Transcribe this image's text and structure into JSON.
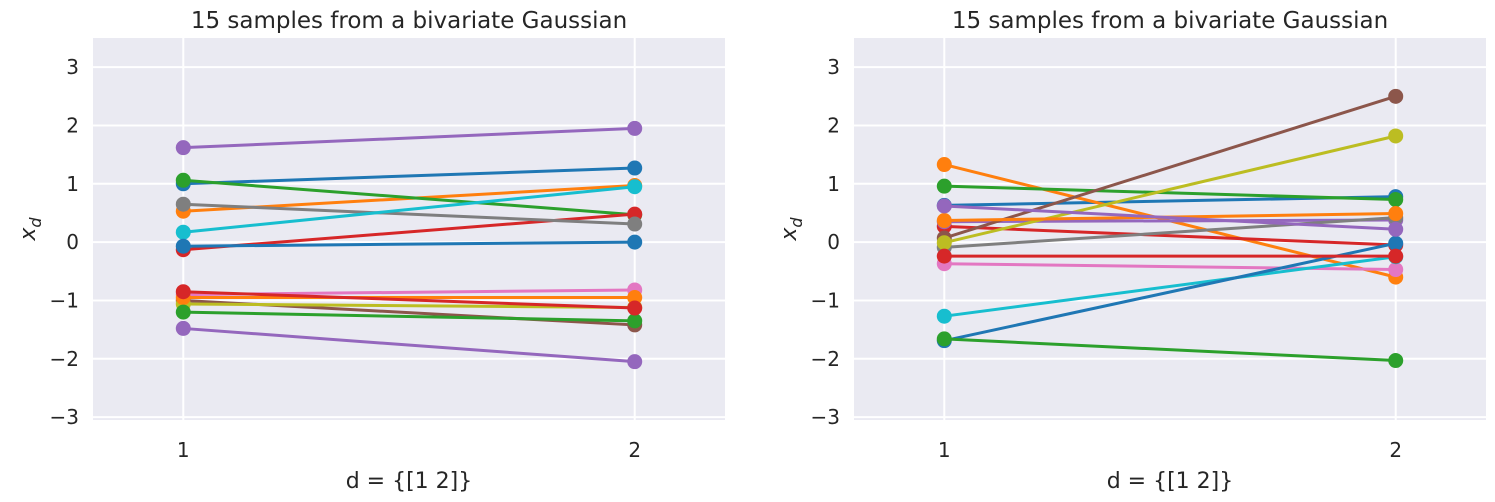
{
  "chart_data": [
    {
      "type": "line",
      "title": "15 samples from a bivariate Gaussian",
      "xlabel": "d = {[1 2]}",
      "ylabel": "x",
      "ylabel_sub": "d",
      "x": [
        1,
        2
      ],
      "xticks": [
        "1",
        "2"
      ],
      "yticks": [
        "−3",
        "−2",
        "−1",
        "0",
        "1",
        "2",
        "3"
      ],
      "xlim": [
        0.8,
        2.2
      ],
      "ylim": [
        -3.05,
        3.5
      ],
      "grid": true,
      "background": "#EAEAF2",
      "series": [
        {
          "color": "#1f77b4",
          "values": [
            1.0,
            1.27
          ]
        },
        {
          "color": "#ff7f0e",
          "values": [
            0.53,
            0.97
          ]
        },
        {
          "color": "#2ca02c",
          "values": [
            1.06,
            0.47
          ]
        },
        {
          "color": "#d62728",
          "values": [
            -0.13,
            0.48
          ]
        },
        {
          "color": "#9467bd",
          "values": [
            1.62,
            1.95
          ]
        },
        {
          "color": "#8c564b",
          "values": [
            -1.0,
            -1.42
          ]
        },
        {
          "color": "#e377c2",
          "values": [
            -0.9,
            -0.82
          ]
        },
        {
          "color": "#7f7f7f",
          "values": [
            0.65,
            0.31
          ]
        },
        {
          "color": "#bcbd22",
          "values": [
            -1.06,
            -1.12
          ]
        },
        {
          "color": "#17becf",
          "values": [
            0.17,
            0.95
          ]
        },
        {
          "color": "#1f77b4",
          "values": [
            -0.07,
            0.0
          ]
        },
        {
          "color": "#ff7f0e",
          "values": [
            -0.95,
            -0.95
          ]
        },
        {
          "color": "#2ca02c",
          "values": [
            -1.2,
            -1.35
          ]
        },
        {
          "color": "#d62728",
          "values": [
            -0.85,
            -1.13
          ]
        },
        {
          "color": "#9467bd",
          "values": [
            -1.48,
            -2.05
          ]
        }
      ]
    },
    {
      "type": "line",
      "title": "15 samples from a bivariate Gaussian",
      "xlabel": "d = {[1 2]}",
      "ylabel": "x",
      "ylabel_sub": "d",
      "x": [
        1,
        2
      ],
      "xticks": [
        "1",
        "2"
      ],
      "yticks": [
        "−3",
        "−2",
        "−1",
        "0",
        "1",
        "2",
        "3"
      ],
      "xlim": [
        0.8,
        2.2
      ],
      "ylim": [
        -3.05,
        3.5
      ],
      "grid": true,
      "background": "#EAEAF2",
      "series": [
        {
          "color": "#1f77b4",
          "values": [
            0.63,
            0.78
          ]
        },
        {
          "color": "#ff7f0e",
          "values": [
            1.33,
            -0.6
          ]
        },
        {
          "color": "#2ca02c",
          "values": [
            0.96,
            0.73
          ]
        },
        {
          "color": "#d62728",
          "values": [
            0.27,
            -0.05
          ]
        },
        {
          "color": "#9467bd",
          "values": [
            0.35,
            0.38
          ]
        },
        {
          "color": "#8c564b",
          "values": [
            0.07,
            2.5
          ]
        },
        {
          "color": "#e377c2",
          "values": [
            -0.37,
            -0.47
          ]
        },
        {
          "color": "#7f7f7f",
          "values": [
            -0.09,
            0.42
          ]
        },
        {
          "color": "#bcbd22",
          "values": [
            -0.01,
            1.82
          ]
        },
        {
          "color": "#17becf",
          "values": [
            -1.27,
            -0.25
          ]
        },
        {
          "color": "#1f77b4",
          "values": [
            -1.69,
            -0.02
          ]
        },
        {
          "color": "#ff7f0e",
          "values": [
            0.37,
            0.49
          ]
        },
        {
          "color": "#2ca02c",
          "values": [
            -1.66,
            -2.03
          ]
        },
        {
          "color": "#d62728",
          "values": [
            -0.24,
            -0.24
          ]
        },
        {
          "color": "#9467bd",
          "values": [
            0.62,
            0.22
          ]
        }
      ]
    }
  ]
}
